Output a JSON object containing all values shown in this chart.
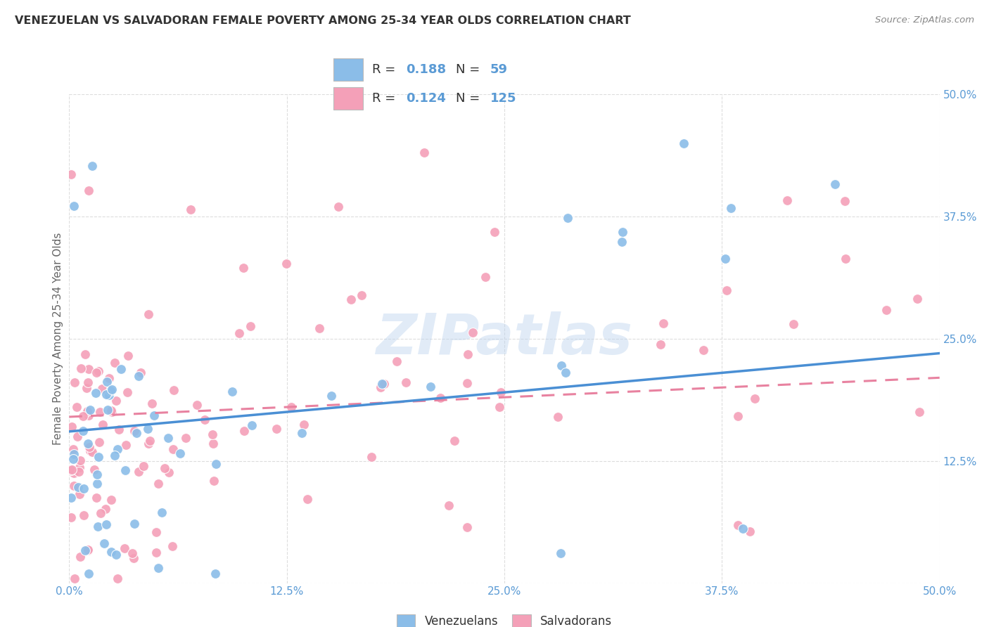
{
  "title": "VENEZUELAN VS SALVADORAN FEMALE POVERTY AMONG 25-34 YEAR OLDS CORRELATION CHART",
  "source": "Source: ZipAtlas.com",
  "ylabel": "Female Poverty Among 25-34 Year Olds",
  "xlim": [
    0,
    0.5
  ],
  "ylim": [
    0,
    0.5
  ],
  "xtick_vals": [
    0.0,
    0.125,
    0.25,
    0.375,
    0.5
  ],
  "ytick_vals": [
    0.0,
    0.125,
    0.25,
    0.375,
    0.5
  ],
  "xtick_labels": [
    "0.0%",
    "12.5%",
    "25.0%",
    "37.5%",
    "50.0%"
  ],
  "ytick_labels_right": [
    "",
    "12.5%",
    "25.0%",
    "37.5%",
    "50.0%"
  ],
  "watermark_text": "ZIPatlas",
  "venezuelan_color": "#8BBDE8",
  "salvadoran_color": "#F4A0B8",
  "ven_line_color": "#4A8FD4",
  "sal_line_color": "#E882A0",
  "venezuelan_R": "0.188",
  "venezuelan_N": "59",
  "salvadoran_R": "0.124",
  "salvadoran_N": "125",
  "legend_label_1": "Venezuelans",
  "legend_label_2": "Salvadorans",
  "label_color": "#5B9BD5",
  "title_color": "#333333",
  "source_color": "#888888",
  "ylabel_color": "#666666",
  "grid_color": "#DDDDDD",
  "tick_color": "#5B9BD5",
  "background_color": "#FFFFFF",
  "ven_line_start_y": 0.155,
  "ven_line_end_y": 0.235,
  "sal_line_start_y": 0.17,
  "sal_line_end_y": 0.21
}
